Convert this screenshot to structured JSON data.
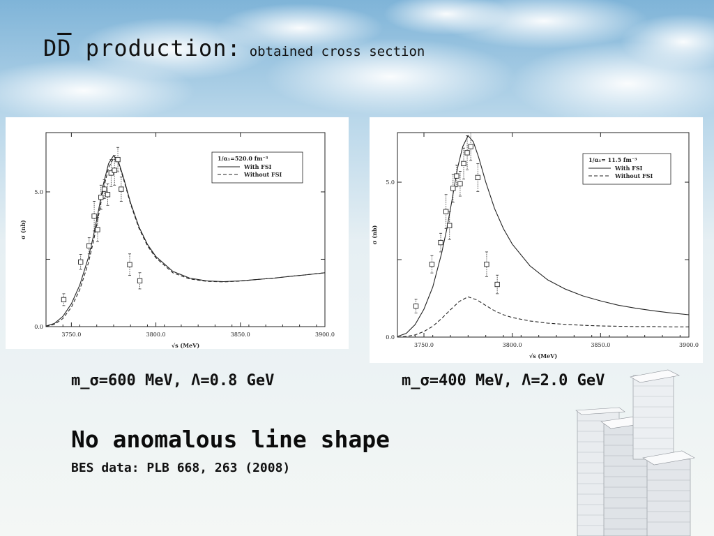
{
  "slide": {
    "title_prefix": "D",
    "title_dbar": "D",
    "title_rest": " production:",
    "subtitle": "obtained cross section",
    "caption_left": "m_σ=600 MeV, Λ=0.8 GeV",
    "caption_right": "m_σ=400 MeV, Λ=2.0 GeV",
    "headline": "No anomalous line shape",
    "reference": "BES data: PLB 668, 263 (2008)"
  },
  "colors": {
    "sky": "#9cc6e2",
    "cloud": "#ffffff",
    "ink": "#111111"
  },
  "chart_data": [
    {
      "type": "line",
      "xlabel": "√s (MeV)",
      "ylabel": "σ (nb)",
      "xlim": [
        3735,
        3900
      ],
      "ylim": [
        0,
        7.2
      ],
      "xticks": [
        3750,
        3800,
        3850,
        3900
      ],
      "xtick_labels": [
        "3750.0",
        "3800.0",
        "3850.0",
        "3900.0"
      ],
      "yticks": [
        0,
        5
      ],
      "ytick_labels": [
        "0.0",
        "5.0"
      ],
      "legend_position": "top-right",
      "legend_title": "1/α₁=520.0 fm⁻³",
      "series": [
        {
          "name": "With FSI",
          "style": "solid",
          "x": [
            3735,
            3740,
            3745,
            3750,
            3755,
            3760,
            3763,
            3766,
            3769,
            3772,
            3775,
            3778,
            3781,
            3785,
            3790,
            3795,
            3800,
            3810,
            3820,
            3830,
            3840,
            3850,
            3860,
            3870,
            3880,
            3890,
            3900
          ],
          "y": [
            0.02,
            0.12,
            0.38,
            0.85,
            1.55,
            2.55,
            3.35,
            4.3,
            5.3,
            6.05,
            6.35,
            6.1,
            5.5,
            4.6,
            3.7,
            3.05,
            2.6,
            2.05,
            1.8,
            1.7,
            1.67,
            1.7,
            1.75,
            1.8,
            1.87,
            1.93,
            2.0
          ]
        },
        {
          "name": "Without FSI",
          "style": "dashed",
          "x": [
            3735,
            3740,
            3745,
            3750,
            3755,
            3760,
            3763,
            3766,
            3769,
            3772,
            3775,
            3778,
            3781,
            3785,
            3790,
            3795,
            3800,
            3810,
            3820,
            3830,
            3840,
            3850,
            3860,
            3870,
            3880,
            3890,
            3900
          ],
          "y": [
            0.01,
            0.08,
            0.3,
            0.72,
            1.38,
            2.35,
            3.15,
            4.1,
            5.1,
            5.9,
            6.25,
            6.05,
            5.45,
            4.55,
            3.65,
            3.0,
            2.55,
            2.0,
            1.77,
            1.68,
            1.66,
            1.69,
            1.75,
            1.8,
            1.87,
            1.93,
            2.0
          ]
        }
      ],
      "data_points": {
        "x": [
          3745.5,
          3755.5,
          3760.5,
          3763.5,
          3765.5,
          3767.5,
          3769.5,
          3771.5,
          3773.5,
          3775.5,
          3777.5,
          3779.5,
          3784.5,
          3790.5
        ],
        "y": [
          1.0,
          2.4,
          3.0,
          4.1,
          3.6,
          4.8,
          5.1,
          4.9,
          5.7,
          5.8,
          6.2,
          5.1,
          2.3,
          1.7
        ],
        "err": [
          0.22,
          0.28,
          0.3,
          0.55,
          0.45,
          0.45,
          0.35,
          0.4,
          0.5,
          0.55,
          0.45,
          0.45,
          0.4,
          0.3
        ]
      }
    },
    {
      "type": "line",
      "xlabel": "√s (MeV)",
      "ylabel": "σ (nb)",
      "xlim": [
        3735,
        3900
      ],
      "ylim": [
        0,
        6.6
      ],
      "xticks": [
        3750,
        3800,
        3850,
        3900
      ],
      "xtick_labels": [
        "3750.0",
        "3800.0",
        "3850.0",
        "3900.0"
      ],
      "yticks": [
        0,
        5
      ],
      "ytick_labels": [
        "0.0",
        "5.0"
      ],
      "legend_position": "top-right",
      "legend_title": "1/α₁= 11.5 fm⁻³",
      "series": [
        {
          "name": "With FSI",
          "style": "solid",
          "x": [
            3735,
            3740,
            3745,
            3750,
            3755,
            3760,
            3763,
            3766,
            3769,
            3772,
            3775,
            3778,
            3781,
            3785,
            3790,
            3795,
            3800,
            3810,
            3820,
            3830,
            3840,
            3850,
            3860,
            3870,
            3880,
            3890,
            3900
          ],
          "y": [
            0.02,
            0.12,
            0.4,
            0.9,
            1.62,
            2.7,
            3.5,
            4.45,
            5.45,
            6.15,
            6.5,
            6.3,
            5.8,
            5.0,
            4.15,
            3.5,
            3.0,
            2.3,
            1.85,
            1.55,
            1.33,
            1.17,
            1.03,
            0.93,
            0.85,
            0.78,
            0.72
          ]
        },
        {
          "name": "Without FSI",
          "style": "dashed",
          "x": [
            3735,
            3740,
            3745,
            3750,
            3755,
            3760,
            3765,
            3770,
            3775,
            3780,
            3785,
            3790,
            3795,
            3800,
            3810,
            3820,
            3830,
            3840,
            3850,
            3860,
            3870,
            3880,
            3890,
            3900
          ],
          "y": [
            0.0,
            0.02,
            0.07,
            0.18,
            0.35,
            0.6,
            0.88,
            1.15,
            1.3,
            1.2,
            1.02,
            0.85,
            0.72,
            0.63,
            0.52,
            0.45,
            0.41,
            0.38,
            0.36,
            0.35,
            0.34,
            0.34,
            0.33,
            0.33
          ]
        }
      ],
      "data_points": {
        "x": [
          3745.5,
          3754.5,
          3759.5,
          3762.5,
          3764.5,
          3766.5,
          3768.5,
          3770.5,
          3772.5,
          3774.5,
          3776.5,
          3780.5,
          3785.5,
          3791.5
        ],
        "y": [
          1.0,
          2.35,
          3.05,
          4.05,
          3.6,
          4.8,
          5.2,
          4.95,
          5.6,
          5.95,
          6.15,
          5.15,
          2.35,
          1.7
        ],
        "err": [
          0.22,
          0.28,
          0.3,
          0.55,
          0.45,
          0.45,
          0.35,
          0.4,
          0.5,
          0.55,
          0.45,
          0.45,
          0.4,
          0.3
        ]
      }
    }
  ]
}
